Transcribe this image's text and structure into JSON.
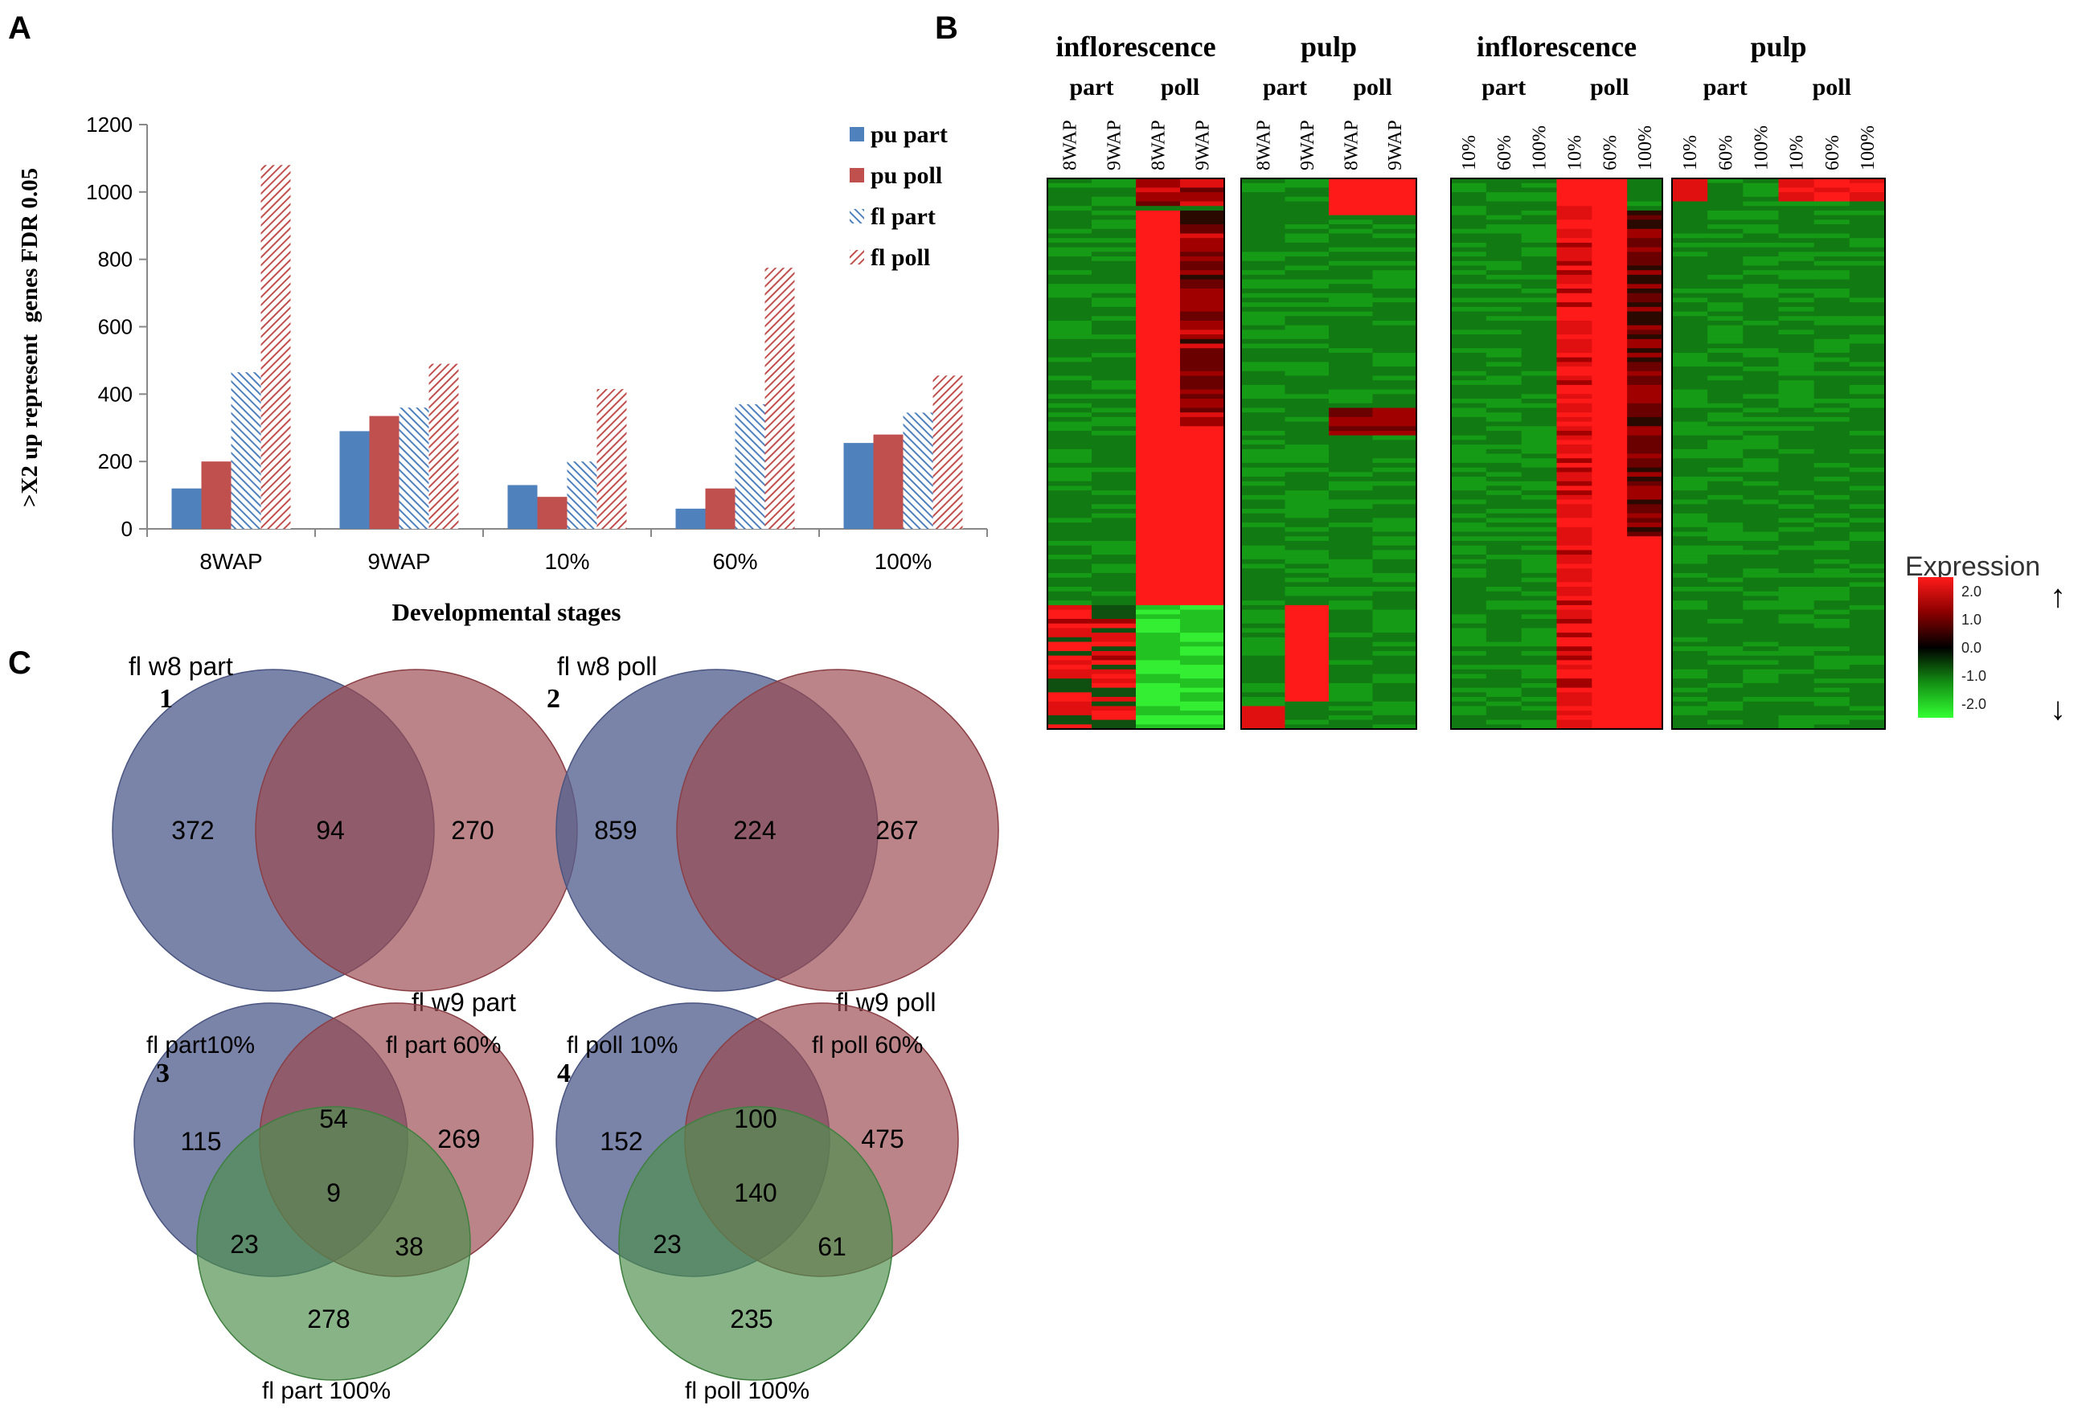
{
  "panels": {
    "A": "A",
    "B": "B",
    "C": "C"
  },
  "chart_data": [
    {
      "type": "bar",
      "panel": "A",
      "categories": [
        "8WAP",
        "9WAP",
        "10%",
        "60%",
        "100%"
      ],
      "series": [
        {
          "name": "pu part",
          "values": [
            120,
            290,
            130,
            60,
            255
          ],
          "color": "#4f81bd",
          "pattern": "solid"
        },
        {
          "name": "pu poll",
          "values": [
            200,
            335,
            95,
            120,
            280
          ],
          "color": "#c0504d",
          "pattern": "solid"
        },
        {
          "name": "fl part",
          "values": [
            465,
            360,
            200,
            370,
            345
          ],
          "color": "#4f81bd",
          "pattern": "hatch"
        },
        {
          "name": "fl poll",
          "values": [
            1080,
            490,
            415,
            775,
            455
          ],
          "color": "#c0504d",
          "pattern": "hatch"
        }
      ],
      "yticks": [
        "0",
        "200",
        "400",
        "600",
        "800",
        "1000",
        "1200"
      ],
      "ylim": [
        0,
        1200
      ],
      "xlabel": "Developmental stages",
      "ylabel": ">X2 up represent  genes FDR 0.05",
      "legend": "top-right"
    },
    {
      "type": "heatmap",
      "panel": "B",
      "groups": [
        {
          "organ": "inflorescence",
          "type_left": "part",
          "type_right": "poll",
          "columns": [
            "8WAP",
            "9WAP",
            "8WAP",
            "9WAP"
          ]
        },
        {
          "organ": "pulp",
          "type_left": "part",
          "type_right": "poll",
          "columns": [
            "8WAP",
            "9WAP",
            "8WAP",
            "9WAP"
          ]
        },
        {
          "organ": "inflorescence",
          "type_left": "part",
          "type_right": "poll",
          "columns": [
            "10%",
            "60%",
            "100%",
            "10%",
            "60%",
            "100%"
          ]
        },
        {
          "organ": "pulp",
          "type_left": "part",
          "type_right": "poll",
          "columns": [
            "10%",
            "60%",
            "100%",
            "10%",
            "60%",
            "100%"
          ]
        }
      ],
      "colorscale": {
        "title": "Expression",
        "ticks": [
          "2.0",
          "1.0",
          "0.0",
          "-1.0",
          "-2.0"
        ],
        "colors": [
          "#ff1a1a",
          "#8b0000",
          "#000000",
          "#138f13",
          "#33ff33"
        ],
        "up_arrow": "↑",
        "down_arrow": "↓"
      }
    },
    {
      "type": "venn",
      "panel": "C",
      "diagrams": [
        {
          "number": "1",
          "sets": [
            "fl w8 part",
            "fl w9 part"
          ],
          "values": {
            "only_a": "372",
            "ab": "94",
            "only_b": "270"
          }
        },
        {
          "number": "2",
          "sets": [
            "fl w8 poll",
            "fl w9 poll"
          ],
          "values": {
            "only_a": "859",
            "ab": "224",
            "only_b": "267"
          }
        },
        {
          "number": "3",
          "sets": [
            "fl part10%",
            "fl part 60%",
            "fl part 100%"
          ],
          "values": {
            "a": "115",
            "b": "269",
            "c": "278",
            "ab": "54",
            "ac": "23",
            "bc": "38",
            "abc": "9"
          }
        },
        {
          "number": "4",
          "sets": [
            "fl poll 10%",
            "fl poll 60%",
            "fl poll 100%"
          ],
          "values": {
            "a": "152",
            "b": "475",
            "c": "235",
            "ab": "100",
            "ac": "23",
            "bc": "61",
            "abc": "140"
          }
        }
      ]
    }
  ]
}
